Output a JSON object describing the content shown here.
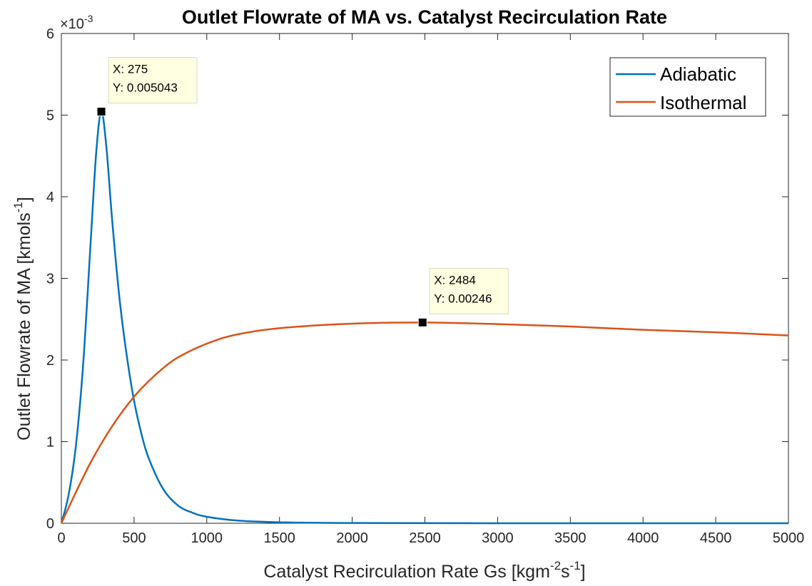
{
  "chart_data": {
    "type": "line",
    "title": "Outlet Flowrate of MA vs. Catalyst Recirculation Rate",
    "xlabel": {
      "base": "Catalyst Recirculation Rate Gs [kgm",
      "sup1": "-2",
      "mid": "s",
      "sup2": "-1",
      "end": "]"
    },
    "ylabel": {
      "base": "Outlet Flowrate of MA [kmols",
      "sup": "-1",
      "end": "]"
    },
    "y_exponent": {
      "base": "×10",
      "sup": "-3"
    },
    "xlim": [
      0,
      5000
    ],
    "ylim": [
      0,
      6
    ],
    "x_ticks": [
      0,
      500,
      1000,
      1500,
      2000,
      2500,
      3000,
      3500,
      4000,
      4500,
      5000
    ],
    "x_tick_labels": [
      "0",
      "500",
      "1000",
      "1500",
      "2000",
      "2500",
      "3000",
      "3500",
      "4000",
      "4500",
      "5000"
    ],
    "y_ticks": [
      0,
      1,
      2,
      3,
      4,
      5,
      6
    ],
    "y_tick_labels": [
      "0",
      "1",
      "2",
      "3",
      "4",
      "5",
      "6"
    ],
    "y_scale_note": "y values in units of 10^-3 kmol/s",
    "grid": false,
    "legend_position": "top-right",
    "series": [
      {
        "name": "Adiabatic",
        "color": "#0072BD",
        "x": [
          0,
          50,
          100,
          150,
          200,
          240,
          275,
          310,
          350,
          400,
          450,
          500,
          550,
          600,
          700,
          800,
          900,
          1000,
          1200,
          1500,
          2000,
          3000,
          4000,
          5000
        ],
        "y": [
          0,
          0.35,
          0.95,
          1.95,
          3.4,
          4.55,
          5.043,
          4.6,
          3.7,
          2.75,
          2.05,
          1.5,
          1.1,
          0.8,
          0.42,
          0.22,
          0.13,
          0.08,
          0.035,
          0.012,
          0.003,
          0.0005,
          0.0001,
          0.0
        ]
      },
      {
        "name": "Isothermal",
        "color": "#D95319",
        "x": [
          0,
          100,
          200,
          300,
          400,
          500,
          600,
          700,
          800,
          1000,
          1200,
          1500,
          2000,
          2484,
          3000,
          3500,
          4000,
          4500,
          5000
        ],
        "y": [
          0,
          0.38,
          0.74,
          1.05,
          1.32,
          1.55,
          1.74,
          1.9,
          2.03,
          2.2,
          2.31,
          2.39,
          2.445,
          2.46,
          2.44,
          2.41,
          2.37,
          2.34,
          2.3
        ]
      }
    ],
    "datatips": [
      {
        "x_text": "X: 275",
        "y_text": "Y: 0.005043",
        "x": 275,
        "y": 5.043
      },
      {
        "x_text": "X: 2484",
        "y_text": "Y: 0.00246",
        "x": 2484,
        "y": 2.46
      }
    ]
  }
}
